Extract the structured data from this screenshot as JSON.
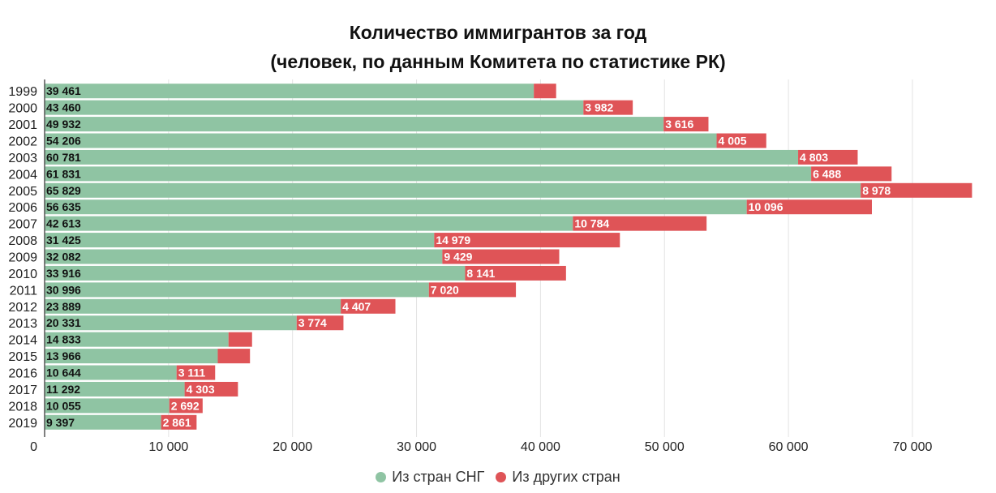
{
  "chart_data": {
    "type": "bar",
    "orientation": "horizontal",
    "stacked": true,
    "title": "Количество иммигрантов за год",
    "subtitle": "(человек, по данным Комитета по статистике РК)",
    "categories": [
      "1999",
      "2000",
      "2001",
      "2002",
      "2003",
      "2004",
      "2005",
      "2006",
      "2007",
      "2008",
      "2009",
      "2010",
      "2011",
      "2012",
      "2013",
      "2014",
      "2015",
      "2016",
      "2017",
      "2018",
      "2019"
    ],
    "series": [
      {
        "name": "Из стран СНГ",
        "color": "#8fc4a3",
        "values": [
          39461,
          43460,
          49932,
          54206,
          60781,
          61831,
          65829,
          56635,
          42613,
          31425,
          32082,
          33916,
          30996,
          23889,
          20331,
          14833,
          13966,
          10644,
          11292,
          10055,
          9397
        ],
        "labels": [
          "39 461",
          "43 460",
          "49 932",
          "54 206",
          "60 781",
          "61 831",
          "65 829",
          "56 635",
          "42 613",
          "31 425",
          "32 082",
          "33 916",
          "30 996",
          "23 889",
          "20 331",
          "14 833",
          "13 966",
          "10 644",
          "11 292",
          "10 055",
          "9 397"
        ]
      },
      {
        "name": "Из других стран",
        "color": "#df5457",
        "values": [
          1800,
          3982,
          3616,
          4005,
          4803,
          6488,
          8978,
          10096,
          10784,
          14979,
          9429,
          8141,
          7020,
          4407,
          3774,
          1900,
          2600,
          3111,
          4303,
          2692,
          2861
        ],
        "labels": [
          "",
          "3 982",
          "3 616",
          "4 005",
          "4 803",
          "6 488",
          "8 978",
          "10 096",
          "10 784",
          "14 979",
          "9 429",
          "8 141",
          "7 020",
          "4 407",
          "3 774",
          "",
          "",
          "3 111",
          "4 303",
          "2 692",
          "2 861"
        ]
      }
    ],
    "x_axis": {
      "min": 0,
      "max": 76500,
      "ticks": [
        0,
        10000,
        20000,
        30000,
        40000,
        50000,
        60000,
        70000
      ],
      "tick_labels": [
        "0",
        "10 000",
        "20 000",
        "30 000",
        "40 000",
        "50 000",
        "60 000",
        "70 000"
      ]
    },
    "grid": true,
    "legend_position": "bottom-center"
  }
}
